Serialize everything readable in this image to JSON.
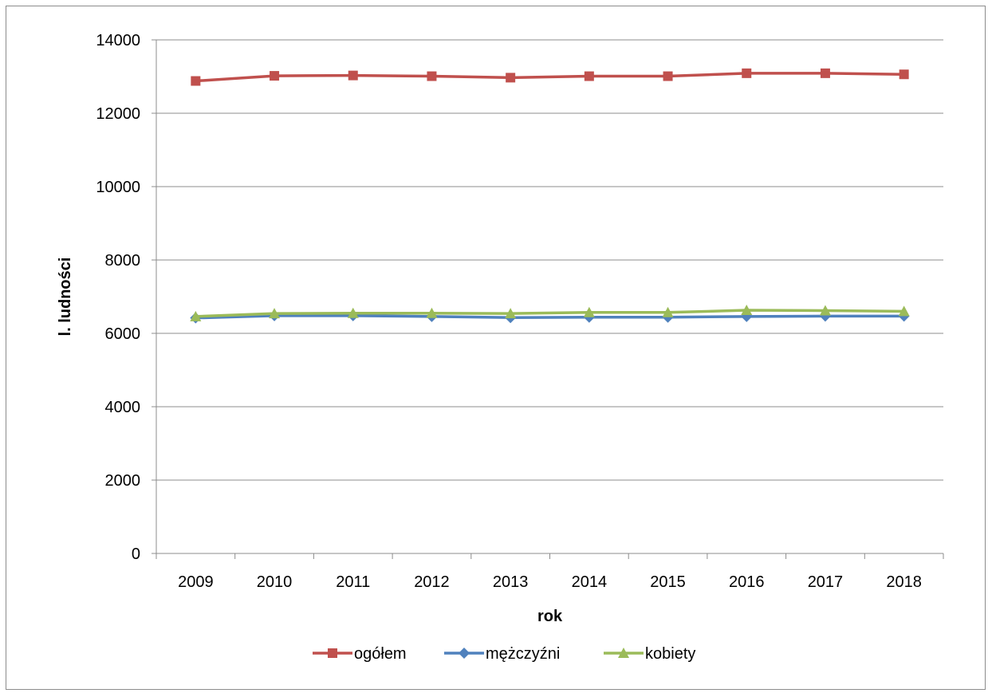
{
  "chart_data": {
    "type": "line",
    "xlabel": "rok",
    "ylabel": "l. ludności",
    "ylim": [
      0,
      14000
    ],
    "y_ticks": [
      "0",
      "2000",
      "4000",
      "6000",
      "8000",
      "10000",
      "12000",
      "14000"
    ],
    "categories": [
      "2009",
      "2010",
      "2011",
      "2012",
      "2013",
      "2014",
      "2015",
      "2016",
      "2017",
      "2018"
    ],
    "grid": "horizontal",
    "legend_position": "bottom",
    "series": [
      {
        "name": "ogółem",
        "color": "#c0504d",
        "marker": "square",
        "values": [
          12880,
          13020,
          13030,
          13010,
          12970,
          13010,
          13010,
          13090,
          13090,
          13060
        ]
      },
      {
        "name": "mężczyźni",
        "color": "#4f81bd",
        "marker": "diamond",
        "values": [
          6420,
          6480,
          6480,
          6460,
          6430,
          6440,
          6440,
          6460,
          6470,
          6470
        ]
      },
      {
        "name": "kobiety",
        "color": "#9bbb59",
        "marker": "triangle",
        "values": [
          6460,
          6540,
          6550,
          6550,
          6540,
          6570,
          6570,
          6630,
          6620,
          6600
        ]
      }
    ]
  }
}
